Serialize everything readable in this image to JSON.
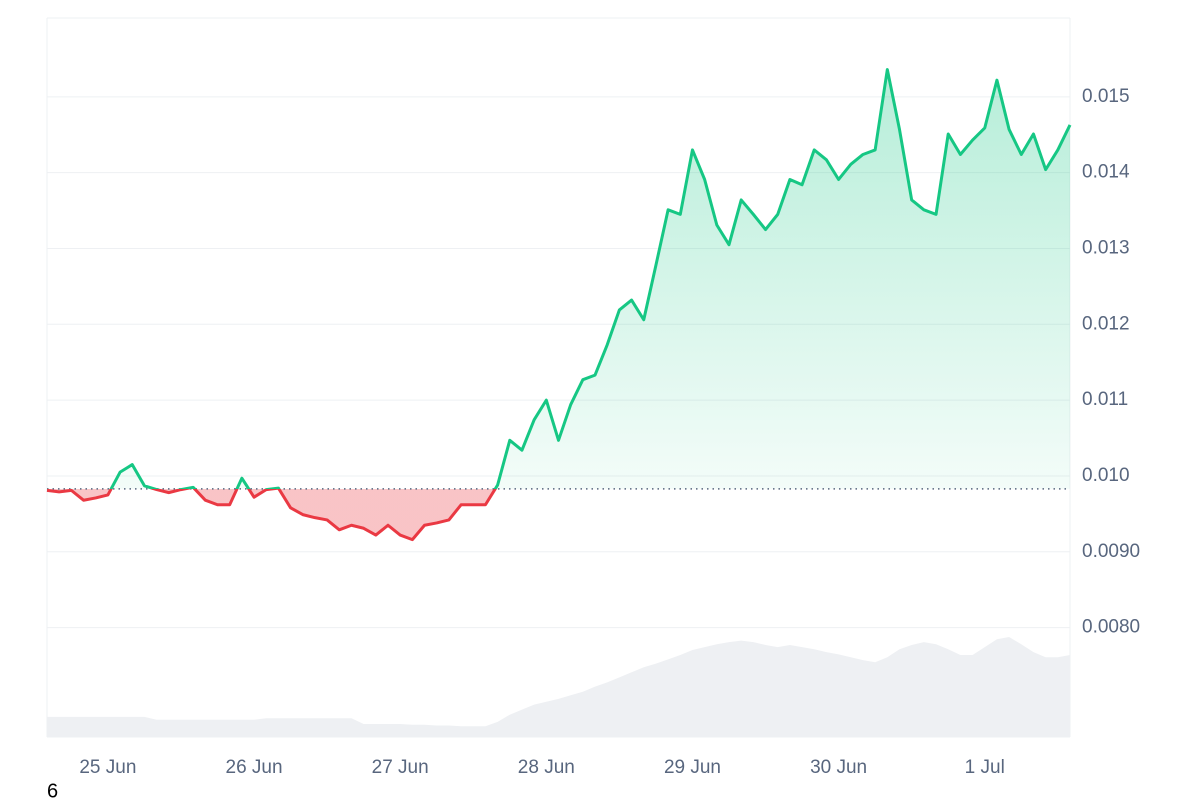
{
  "chart_data": {
    "type": "price-area",
    "categories": [
      null,
      null,
      null,
      null,
      null,
      "25 Jun",
      null,
      null,
      null,
      null,
      null,
      null,
      null,
      null,
      null,
      null,
      null,
      "26 Jun",
      null,
      null,
      null,
      null,
      null,
      null,
      null,
      null,
      null,
      null,
      null,
      "27 Jun",
      null,
      null,
      null,
      null,
      null,
      null,
      null,
      null,
      null,
      null,
      null,
      "28 Jun",
      null,
      null,
      null,
      null,
      null,
      null,
      null,
      null,
      null,
      null,
      null,
      "29 Jun",
      null,
      null,
      null,
      null,
      null,
      null,
      null,
      null,
      null,
      null,
      null,
      "30 Jun",
      null,
      null,
      null,
      null,
      null,
      null,
      null,
      null,
      null,
      null,
      null,
      "1 Jul",
      null,
      null,
      null,
      null,
      null,
      null,
      null
    ],
    "values": [
      0.00981,
      0.00979,
      0.00981,
      0.00968,
      0.00971,
      0.00975,
      0.01005,
      0.01015,
      0.00987,
      0.00982,
      0.00978,
      0.00982,
      0.00985,
      0.00968,
      0.00962,
      0.00962,
      0.00997,
      0.00972,
      0.00982,
      0.00984,
      0.00958,
      0.00949,
      0.00945,
      0.00942,
      0.00929,
      0.00935,
      0.00931,
      0.00922,
      0.00935,
      0.00922,
      0.00916,
      0.00935,
      0.00938,
      0.00942,
      0.00962,
      0.00962,
      0.00962,
      0.00988,
      0.01047,
      0.01034,
      0.01074,
      0.011,
      0.01047,
      0.01094,
      0.01127,
      0.01133,
      0.01173,
      0.01219,
      0.01232,
      0.01206,
      0.01278,
      0.01351,
      0.01345,
      0.0143,
      0.01391,
      0.01331,
      0.01305,
      0.01364,
      0.01345,
      0.01325,
      0.01345,
      0.01391,
      0.01384,
      0.0143,
      0.01417,
      0.01391,
      0.01411,
      0.01424,
      0.0143,
      0.01536,
      0.01457,
      0.01364,
      0.01351,
      0.01345,
      0.01451,
      0.01424,
      0.01443,
      0.01459,
      0.01522,
      0.01457,
      0.01424,
      0.01451,
      0.01404,
      0.0143,
      0.01463
    ],
    "baseline": 0.00983,
    "up_color": "#16c784",
    "down_color": "#ea3943",
    "volume": {
      "axis": "y2",
      "color": "#eef0f3",
      "values": [
        2.8,
        2.8,
        2.8,
        2.8,
        2.8,
        2.8,
        2.8,
        2.8,
        2.8,
        2.4,
        2.4,
        2.4,
        2.4,
        2.4,
        2.4,
        2.4,
        2.4,
        2.4,
        2.6,
        2.6,
        2.6,
        2.6,
        2.6,
        2.6,
        2.6,
        2.6,
        1.8,
        1.8,
        1.8,
        1.8,
        1.7,
        1.7,
        1.6,
        1.6,
        1.5,
        1.5,
        1.5,
        2.1,
        3.1,
        3.8,
        4.5,
        4.9,
        5.3,
        5.8,
        6.3,
        7.0,
        7.6,
        8.3,
        9.0,
        9.7,
        10.2,
        10.8,
        11.4,
        12.1,
        12.5,
        12.9,
        13.2,
        13.4,
        13.2,
        12.8,
        12.5,
        12.8,
        12.5,
        12.2,
        11.8,
        11.5,
        11.1,
        10.7,
        10.4,
        11.1,
        12.2,
        12.8,
        13.2,
        12.9,
        12.2,
        11.4,
        11.4,
        12.5,
        13.6,
        13.9,
        12.9,
        11.8,
        11.1,
        11.1,
        11.4
      ]
    },
    "ylim": [
      0.006557,
      0.01604
    ],
    "yticks": [
      {
        "value": 0.008,
        "label": "0.0080"
      },
      {
        "value": 0.009,
        "label": "0.0090"
      },
      {
        "value": 0.01,
        "label": "0.010"
      },
      0.011,
      0.012,
      0.013,
      0.014,
      0.015
    ],
    "y2lim": [
      0,
      100
    ],
    "grid": true
  },
  "footer": "6"
}
